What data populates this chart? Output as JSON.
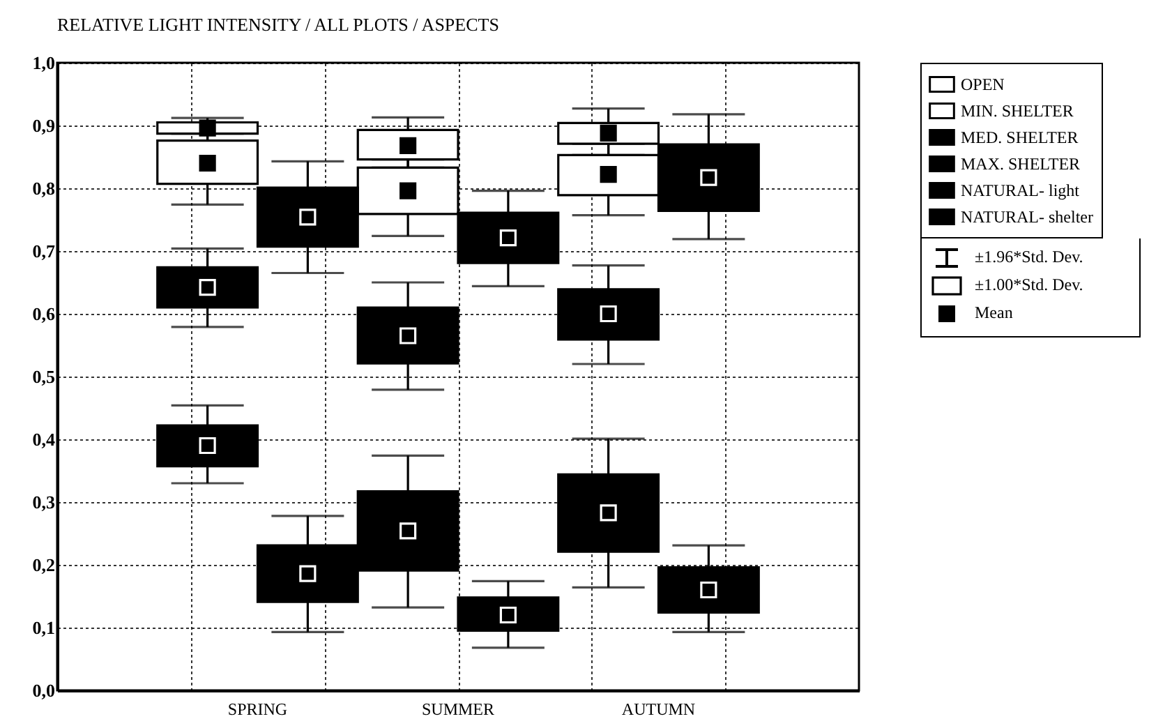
{
  "chart_data": {
    "type": "box",
    "title": "RELATIVE LIGHT INTENSITY  / ALL PLOTS / ASPECTS",
    "categories": [
      "SPRING",
      "SUMMER",
      "AUTUMN"
    ],
    "ylim": [
      0,
      1
    ],
    "yticks": [
      {
        "value": 0,
        "label": "0,0"
      },
      {
        "value": 0.1,
        "label": "0,1"
      },
      {
        "value": 0.2,
        "label": "0,2"
      },
      {
        "value": 0.3,
        "label": "0,3"
      },
      {
        "value": 0.4,
        "label": "0,4"
      },
      {
        "value": 0.5,
        "label": "0,5"
      },
      {
        "value": 0.6,
        "label": "0,6"
      },
      {
        "value": 0.7,
        "label": "0,7"
      },
      {
        "value": 0.8,
        "label": "0,8"
      },
      {
        "value": 0.9,
        "label": "0,9"
      },
      {
        "value": 1,
        "label": "1,0"
      }
    ],
    "grid": true,
    "legend": "top right",
    "marker": "square",
    "annotations": [
      "±1.96*Std. Dev.",
      "±1.00*Std. Dev.",
      "Mean"
    ],
    "series": [
      {
        "name": "OPEN",
        "color": "#ffffff",
        "boxes": [
          {
            "low": 0.876,
            "q1": 0.887,
            "median": 0.896,
            "q3": 0.905,
            "high": 0.912
          },
          {
            "low": 0.833,
            "q1": 0.846,
            "median": 0.868,
            "q3": 0.893,
            "high": 0.913
          },
          {
            "low": 0.853,
            "q1": 0.871,
            "median": 0.888,
            "q3": 0.904,
            "high": 0.927
          }
        ]
      },
      {
        "name": "MIN. SHELTER",
        "color": "#ffffff",
        "boxes": [
          {
            "low": 0.774,
            "q1": 0.807,
            "median": 0.84,
            "q3": 0.876,
            "high": 0.887
          },
          {
            "low": 0.724,
            "q1": 0.759,
            "median": 0.796,
            "q3": 0.833,
            "high": 0.846
          },
          {
            "low": 0.757,
            "q1": 0.789,
            "median": 0.822,
            "q3": 0.853,
            "high": 0.871
          }
        ]
      },
      {
        "name": "MED. SHELTER",
        "color": "#000000",
        "boxes": [
          {
            "low": 0.579,
            "q1": 0.61,
            "median": 0.642,
            "q3": 0.674,
            "high": 0.704
          },
          {
            "low": 0.479,
            "q1": 0.521,
            "median": 0.565,
            "q3": 0.61,
            "high": 0.65
          },
          {
            "low": 0.52,
            "q1": 0.559,
            "median": 0.6,
            "q3": 0.639,
            "high": 0.677
          }
        ]
      },
      {
        "name": "MAX. SHELTER",
        "color": "#000000",
        "boxes": [
          {
            "low": 0.33,
            "q1": 0.357,
            "median": 0.39,
            "q3": 0.422,
            "high": 0.454
          },
          {
            "low": 0.132,
            "q1": 0.191,
            "median": 0.254,
            "q3": 0.317,
            "high": 0.374
          },
          {
            "low": 0.164,
            "q1": 0.221,
            "median": 0.283,
            "q3": 0.344,
            "high": 0.401
          }
        ]
      },
      {
        "name": "NATURAL- light",
        "color": "#000000",
        "boxes": [
          {
            "low": 0.665,
            "q1": 0.707,
            "median": 0.754,
            "q3": 0.801,
            "high": 0.843
          },
          {
            "low": 0.644,
            "q1": 0.681,
            "median": 0.721,
            "q3": 0.761,
            "high": 0.796
          },
          {
            "low": 0.719,
            "q1": 0.764,
            "median": 0.817,
            "q3": 0.87,
            "high": 0.918
          }
        ]
      },
      {
        "name": "NATURAL- shelter",
        "color": "#000000",
        "boxes": [
          {
            "low": 0.093,
            "q1": 0.141,
            "median": 0.186,
            "q3": 0.231,
            "high": 0.278
          },
          {
            "low": 0.068,
            "q1": 0.095,
            "median": 0.12,
            "q3": 0.148,
            "high": 0.174
          },
          {
            "low": 0.093,
            "q1": 0.124,
            "median": 0.16,
            "q3": 0.196,
            "high": 0.231
          }
        ]
      }
    ]
  }
}
